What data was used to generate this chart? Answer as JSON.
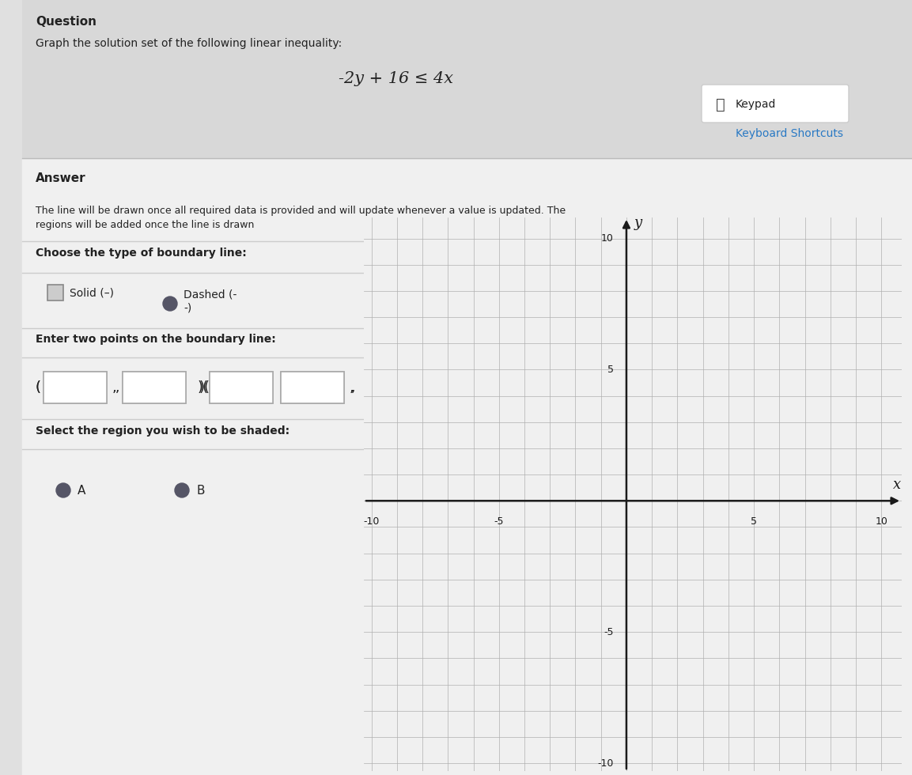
{
  "title_question": "Question",
  "problem_text": "Graph the solution set of the following linear inequality:",
  "inequality": "-2y + 16 ≤ 4x",
  "keypad_text": "Keypad",
  "keyboard_text": "Keyboard Shortcuts",
  "answer_label": "Answer",
  "desc_line1": "The line will be drawn once all required data is provided and will update whenever a value is updated. The",
  "desc_line2": "regions will be added once the line is drawn",
  "boundary_label": "Choose the type of boundary line:",
  "solid_label": "Solid (–)",
  "dashed_line1": "Dashed (-",
  "dashed_line2": "-)",
  "points_label": "Enter two points on the boundary line:",
  "region_label": "Select the region you wish to be shaded:",
  "region_a": "A",
  "region_b": "B",
  "axis_min": -10,
  "axis_max": 10,
  "axis_ticks_shown": [
    -10,
    -5,
    5,
    10
  ],
  "grid_color": "#b0b0b0",
  "bg_color": "#e0e0e0",
  "top_bg_color": "#d4d4d4",
  "panel_bg_color": "#e8e8e8",
  "plot_bg_color": "#f0f0f0",
  "axis_color": "#1a1a1a",
  "text_color": "#222222",
  "link_color": "#2979c4",
  "radio_color": "#555566",
  "x_label": "x",
  "y_label": "y"
}
